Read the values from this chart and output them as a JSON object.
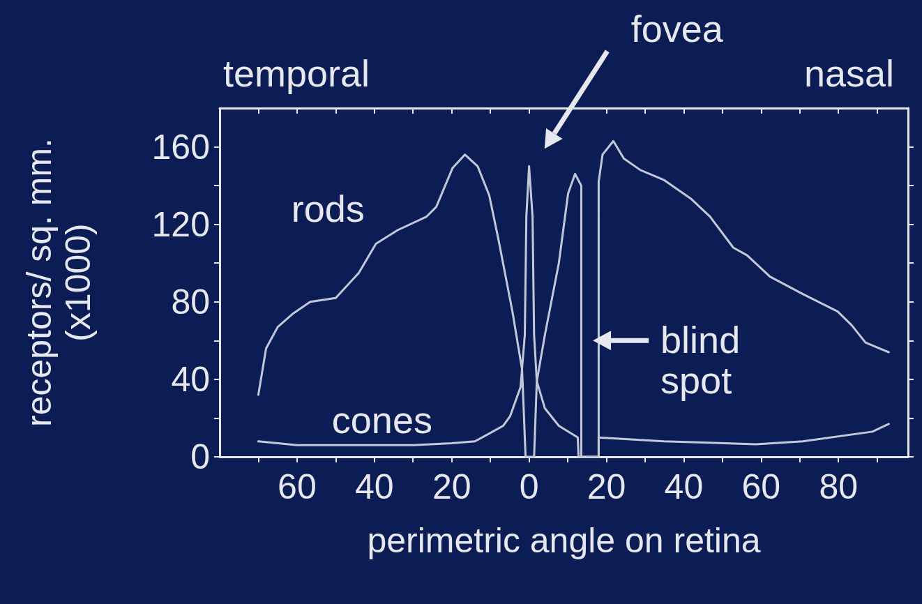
{
  "chart_data": {
    "type": "line",
    "xlabel": "perimetric angle on retina",
    "ylabel": "receptors/ sq. mm.\n(x1000)",
    "xlim": [
      -80,
      98
    ],
    "ylim": [
      0,
      180
    ],
    "xticks": [
      {
        "value": -70,
        "label": null
      },
      {
        "value": -60,
        "label": "60"
      },
      {
        "value": -50,
        "label": null
      },
      {
        "value": -40,
        "label": "40"
      },
      {
        "value": -30,
        "label": null
      },
      {
        "value": -20,
        "label": "20"
      },
      {
        "value": -10,
        "label": null
      },
      0,
      {
        "value": 10,
        "label": null
      },
      20,
      {
        "value": 30,
        "label": null
      },
      40,
      {
        "value": 50,
        "label": null
      },
      60,
      {
        "value": 70,
        "label": null
      },
      80,
      {
        "value": 90,
        "label": null
      }
    ],
    "yticks": [
      0,
      {
        "value": 20,
        "label": null
      },
      40,
      {
        "value": 60,
        "label": null
      },
      80,
      {
        "value": 100,
        "label": null
      },
      120,
      {
        "value": 140,
        "label": null
      },
      160
    ],
    "grid": false,
    "legend": false,
    "line_style": "solid",
    "series": [
      {
        "name": "rods",
        "color": "#c3c8d8",
        "x": [
          -70,
          -68,
          -65,
          -61,
          -56.6,
          -50,
          -44,
          -39.6,
          -34,
          -26.5,
          -24,
          -19.8,
          -16.6,
          -13.3,
          -10.3,
          -7.9,
          -4.3,
          -1.8,
          -0.9,
          1.3,
          2,
          4.1,
          7.7,
          10.1,
          11.9,
          13.5,
          13.5,
          18,
          18,
          19,
          21.8,
          24.5,
          28.8,
          34.8,
          42,
          46.8,
          52.8,
          56.4,
          62.3,
          70.8,
          79.8,
          83.4,
          87,
          93
        ],
        "values": [
          32,
          56,
          67,
          74,
          80,
          82,
          95,
          110,
          117,
          124,
          129,
          149,
          156,
          150,
          135,
          112,
          75,
          45,
          0,
          0,
          39,
          63,
          100,
          136,
          146,
          140,
          0,
          0,
          142,
          156,
          163,
          154,
          148,
          143,
          133,
          124,
          108,
          104,
          93,
          84,
          75,
          68,
          59,
          54
        ]
      },
      {
        "name": "cones",
        "color": "#c3c8d8",
        "x": [
          -70,
          -60,
          -50,
          -40,
          -30,
          -20,
          -14,
          -10.3,
          -6.7,
          -4.9,
          -2.2,
          -1.1,
          -0.7,
          0,
          0.9,
          1.3,
          2,
          4.1,
          7.7,
          12.6,
          12.8,
          18,
          18,
          34.8,
          58.7,
          70.8,
          88.8,
          93
        ],
        "values": [
          8,
          6,
          6,
          6,
          6,
          7,
          8,
          12,
          16,
          21,
          36,
          63,
          124,
          150,
          124,
          63,
          39,
          25,
          16,
          10,
          0,
          0,
          10,
          8,
          6.5,
          8,
          13,
          17
        ]
      }
    ],
    "annotations": [
      "temporal",
      "nasal",
      "fovea",
      "blind spot"
    ]
  }
}
